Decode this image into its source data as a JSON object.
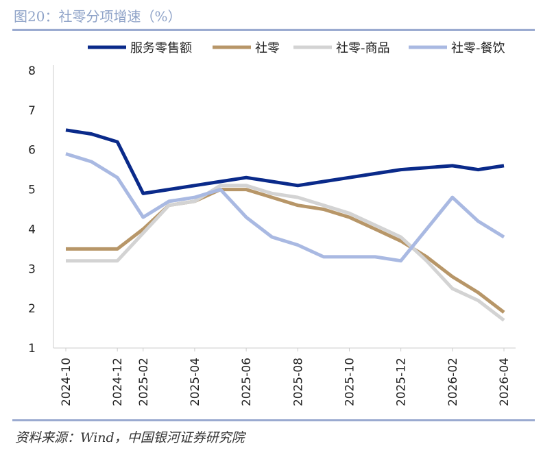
{
  "title": "图20：社零分项增速（%）",
  "source": "资料来源：Wind，中国银河证券研究院",
  "chart_data": {
    "type": "line",
    "title": "图20：社零分项增速（%）",
    "xlabel": "",
    "ylabel": "",
    "ylim": [
      1,
      8
    ],
    "yticks": [
      1,
      2,
      3,
      4,
      5,
      6,
      7,
      8
    ],
    "grid": false,
    "legend_position": "top",
    "x": [
      "2024-10",
      "2024-11",
      "2024-12",
      "2025-02",
      "2025-03",
      "2025-04",
      "2025-05",
      "2025-06",
      "2025-07",
      "2025-08",
      "2025-09",
      "2025-10",
      "2025-11",
      "2025-12",
      "2026-01",
      "2026-02",
      "2026-03",
      "2026-04"
    ],
    "xtick_labels": [
      "2024-10",
      "2024-12",
      "2025-02",
      "2025-04",
      "2025-06",
      "2025-08",
      "2025-10",
      "2025-12",
      "2026-02",
      "2026-04"
    ],
    "series": [
      {
        "name": "服务零售额",
        "color": "#0A2A8A",
        "values": [
          6.5,
          6.4,
          6.2,
          4.9,
          5.0,
          5.1,
          5.2,
          5.3,
          5.2,
          5.1,
          5.2,
          5.3,
          5.4,
          5.5,
          5.55,
          5.6,
          5.5,
          5.6
        ]
      },
      {
        "name": "社零",
        "color": "#B79668",
        "values": [
          3.5,
          3.5,
          3.5,
          4.0,
          4.6,
          4.7,
          5.0,
          5.0,
          4.8,
          4.6,
          4.5,
          4.3,
          4.0,
          3.7,
          3.3,
          2.8,
          2.4,
          1.9
        ]
      },
      {
        "name": "社零-商品",
        "color": "#D3D3D3",
        "values": [
          3.2,
          3.2,
          3.2,
          3.9,
          4.6,
          4.7,
          5.1,
          5.1,
          4.9,
          4.8,
          4.6,
          4.4,
          4.1,
          3.8,
          3.2,
          2.5,
          2.2,
          1.7
        ]
      },
      {
        "name": "社零-餐饮",
        "color": "#A9B9E2",
        "values": [
          5.9,
          5.7,
          5.3,
          4.3,
          4.7,
          4.8,
          5.0,
          4.3,
          3.8,
          3.6,
          3.3,
          3.3,
          3.3,
          3.2,
          4.0,
          4.8,
          4.2,
          3.8
        ]
      }
    ]
  }
}
